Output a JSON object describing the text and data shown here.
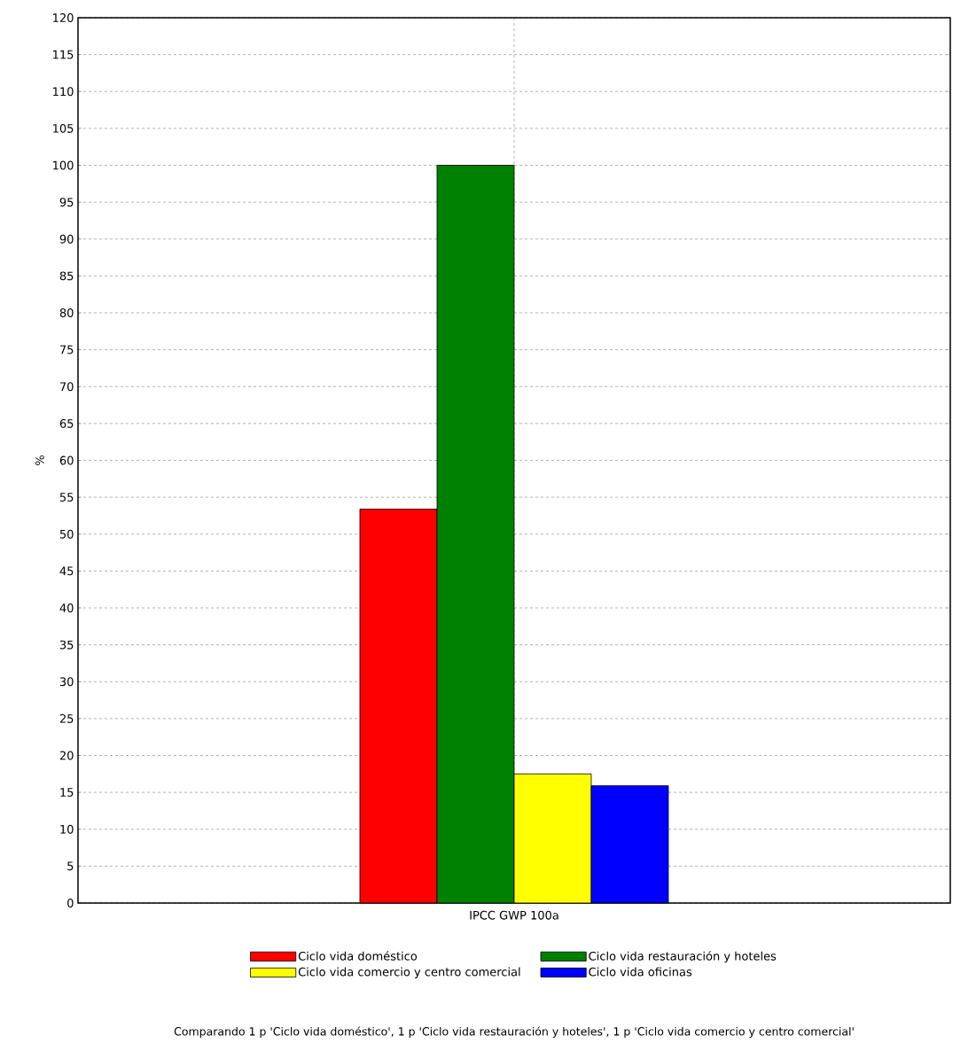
{
  "chart_data": {
    "type": "bar",
    "ylabel": "%",
    "categories": [
      "IPCC GWP 100a"
    ],
    "series": [
      {
        "name": "Ciclo vida doméstico",
        "color": "#ff0000",
        "values": [
          53.4
        ]
      },
      {
        "name": "Ciclo vida restauración y hoteles",
        "color": "#008000",
        "values": [
          100
        ]
      },
      {
        "name": "Ciclo vida comercio y centro comercial",
        "color": "#ffff00",
        "values": [
          17.5
        ]
      },
      {
        "name": "Ciclo vida oficinas",
        "color": "#0000ff",
        "values": [
          15.9
        ]
      }
    ],
    "ylim": [
      0,
      120
    ],
    "yticks": [
      0,
      5,
      10,
      15,
      20,
      25,
      30,
      35,
      40,
      45,
      50,
      55,
      60,
      65,
      70,
      75,
      80,
      85,
      90,
      95,
      100,
      105,
      110,
      115,
      120
    ],
    "grid": true,
    "legend": "bottom",
    "annotations": [
      "Comparando 1 p 'Ciclo vida doméstico', 1 p 'Ciclo vida restauración y hoteles', 1 p 'Ciclo vida comercio y centro comercial'"
    ]
  }
}
